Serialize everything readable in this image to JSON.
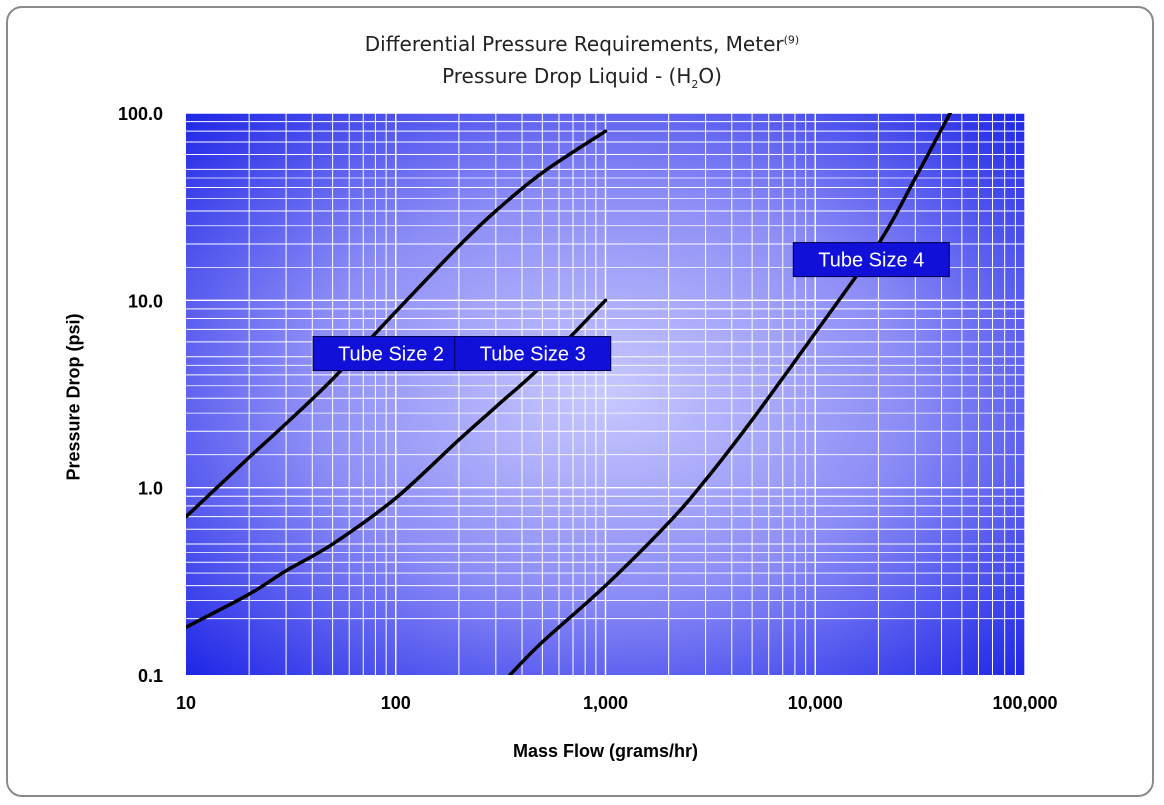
{
  "chart_data": {
    "type": "line",
    "title": "Differential Pressure Requirements, Meter",
    "title_superscript": "(9)",
    "subtitle_prefix": "Pressure Drop Liquid - (H",
    "subtitle_subscript": "2",
    "subtitle_suffix": "O)",
    "xlabel": "Mass Flow (grams/hr)",
    "ylabel": "Pressure Drop (psi)",
    "x_scale": "log",
    "y_scale": "log",
    "xlim": [
      10,
      100000
    ],
    "ylim": [
      0.1,
      100
    ],
    "x_ticks": [
      {
        "value": 10,
        "label": "10"
      },
      {
        "value": 100,
        "label": "100"
      },
      {
        "value": 1000,
        "label": "1,000"
      },
      {
        "value": 10000,
        "label": "10,000"
      },
      {
        "value": 100000,
        "label": "100,000"
      }
    ],
    "y_ticks": [
      {
        "value": 0.1,
        "label": "0.1"
      },
      {
        "value": 1,
        "label": "1.0"
      },
      {
        "value": 10,
        "label": "10.0"
      },
      {
        "value": 100,
        "label": "100.0"
      }
    ],
    "grid": true,
    "colors": {
      "background_center": "#c8c8ff",
      "background_edge": "#1a22e6",
      "grid": "#ffffff",
      "line": "#000000",
      "label_box": "#1010d8"
    },
    "series": [
      {
        "name": "Tube Size 2",
        "x": [
          10,
          20,
          30,
          50,
          100,
          200,
          300,
          500,
          1000
        ],
        "y": [
          0.7,
          1.45,
          2.2,
          3.8,
          8.7,
          19.5,
          30,
          48,
          80
        ]
      },
      {
        "name": "Tube Size 3",
        "x": [
          10,
          20,
          30,
          50,
          100,
          200,
          300,
          500,
          1000
        ],
        "y": [
          0.18,
          0.27,
          0.36,
          0.5,
          0.88,
          1.8,
          2.7,
          4.5,
          10
        ]
      },
      {
        "name": "Tube Size 4",
        "x": [
          350,
          500,
          1000,
          2000,
          3000,
          5000,
          10000,
          20000,
          30000,
          44000
        ],
        "y": [
          0.1,
          0.15,
          0.3,
          0.65,
          1.1,
          2.3,
          6.7,
          20,
          45,
          100
        ]
      }
    ],
    "annotations": [
      {
        "text": "Tube Size 2",
        "x": 95,
        "y": 5.2
      },
      {
        "text": "Tube Size 3",
        "x": 450,
        "y": 5.2
      },
      {
        "text": "Tube Size 4",
        "x": 18500,
        "y": 16.5
      }
    ]
  }
}
